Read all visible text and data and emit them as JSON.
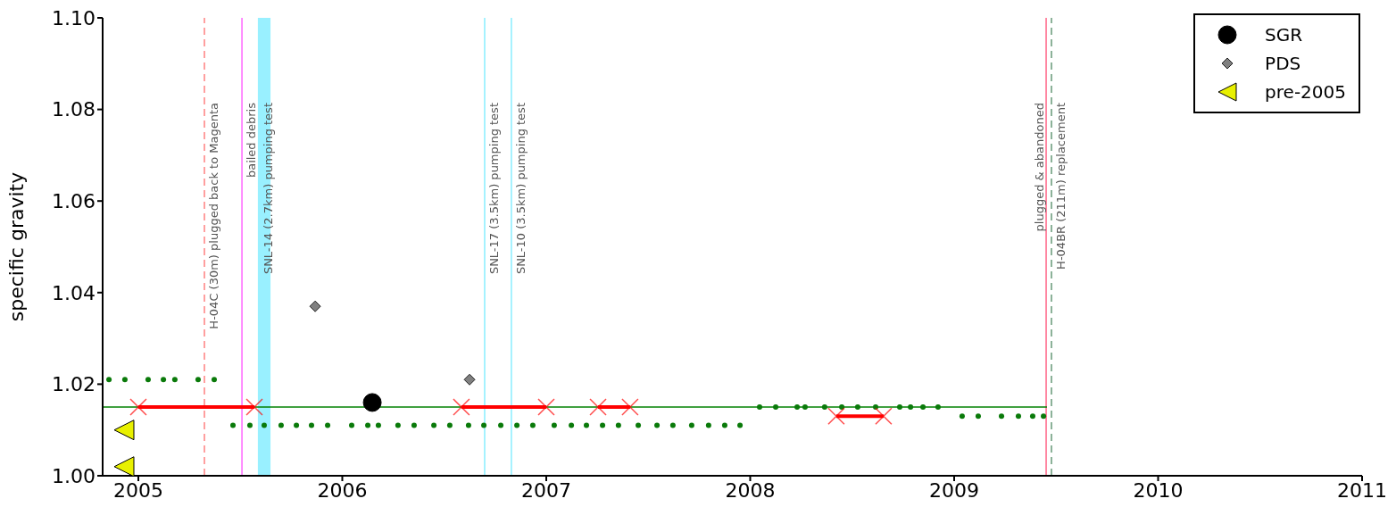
{
  "chart_data": {
    "type": "line",
    "ylabel": "specific gravity",
    "xlim": [
      2004.825,
      2011
    ],
    "xticks": [
      2005,
      2006,
      2007,
      2008,
      2009,
      2010,
      2011
    ],
    "ylim": [
      1.0,
      1.1
    ],
    "yticks": [
      {
        "value": 1.0,
        "label": "1.00"
      },
      1.02,
      1.04,
      1.06,
      1.08,
      {
        "value": 1.1,
        "label": "1.10"
      }
    ],
    "grid": false,
    "legend": "top right",
    "series": [
      {
        "color": "#008000",
        "marker": "none",
        "line_style": "solid",
        "x": [
          2004.825,
          2009.455
        ],
        "values": [
          1.015,
          1.015
        ]
      },
      {
        "type": "scatter",
        "color": "#0a7a0a",
        "marker": "circle",
        "x": [
          2004.856,
          2004.934,
          2005.048,
          2005.123,
          2005.179,
          2005.293,
          2005.372,
          2005.464,
          2005.547,
          2005.617,
          2005.7,
          2005.775,
          2005.849,
          2005.928,
          2006.046,
          2006.125,
          2006.177,
          2006.273,
          2006.352,
          2006.449,
          2006.527,
          2006.619,
          2006.694,
          2006.777,
          2006.856,
          2006.934,
          2007.039,
          2007.123,
          2007.197,
          2007.276,
          2007.354,
          2007.451,
          2007.543,
          2007.621,
          2007.713,
          2007.796,
          2007.875,
          2007.95,
          2008.046,
          2008.125,
          2008.23,
          2008.269,
          2008.365,
          2008.449,
          2008.527,
          2008.615,
          2008.733,
          2008.786,
          2008.847,
          2008.921,
          2009.039,
          2009.118,
          2009.232,
          2009.315,
          2009.385,
          2009.438
        ],
        "values": [
          1.021,
          1.021,
          1.021,
          1.021,
          1.021,
          1.021,
          1.021,
          1.011,
          1.011,
          1.011,
          1.011,
          1.011,
          1.011,
          1.011,
          1.011,
          1.011,
          1.011,
          1.011,
          1.011,
          1.011,
          1.011,
          1.011,
          1.011,
          1.011,
          1.011,
          1.011,
          1.011,
          1.011,
          1.011,
          1.011,
          1.011,
          1.011,
          1.011,
          1.011,
          1.011,
          1.011,
          1.011,
          1.011,
          1.015,
          1.015,
          1.015,
          1.015,
          1.015,
          1.015,
          1.015,
          1.015,
          1.015,
          1.015,
          1.015,
          1.015,
          1.013,
          1.013,
          1.013,
          1.013,
          1.013,
          1.013
        ]
      },
      {
        "color": "#ff0000",
        "marker": "cross",
        "line_style": "solid",
        "x": [
          2005.0,
          2005.569
        ],
        "values": [
          1.015,
          1.015
        ]
      },
      {
        "color": "#ff0000",
        "marker": "cross",
        "line_style": "solid",
        "x": [
          2006.584,
          2007.0
        ],
        "values": [
          1.015,
          1.015
        ]
      },
      {
        "color": "#ff0000",
        "marker": "cross",
        "line_style": "solid",
        "x": [
          2007.254,
          2007.411
        ],
        "values": [
          1.015,
          1.015
        ]
      },
      {
        "color": "#ff0000",
        "marker": "cross",
        "line_style": "solid",
        "x": [
          2008.422,
          2008.654
        ],
        "values": [
          1.013,
          1.013
        ]
      },
      {
        "type": "scatter",
        "name": "SGR",
        "color": "#000000",
        "marker": "circle",
        "x": [
          2006.147
        ],
        "values": [
          1.016
        ]
      },
      {
        "type": "scatter",
        "name": "PDS",
        "color": "#808080",
        "marker": "diamond",
        "x": [
          2005.867,
          2006.624
        ],
        "values": [
          1.037,
          1.021
        ]
      },
      {
        "type": "scatter",
        "name": "pre-2005",
        "color": "#e8f000",
        "marker": "triangle",
        "x": [
          2004.93,
          2004.93
        ],
        "values": [
          1.01,
          1.002
        ]
      }
    ],
    "ref_lines": [
      {
        "axis": "x",
        "value": 2005.324,
        "label": "H-04C (30m) plugged back to Magenta",
        "color": "#ff8080",
        "line_style": "dashed"
      },
      {
        "axis": "x",
        "value": 2005.508,
        "label": "bailed debris",
        "color": "#ff66ff",
        "line_style": "solid"
      },
      {
        "axis": "x",
        "value": 2006.698,
        "label": "SNL-17 (3.5km) pumping test",
        "color": "#88eeff",
        "line_style": "solid"
      },
      {
        "axis": "x",
        "value": 2006.829,
        "label": "SNL-10 (3.5km) pumping test",
        "color": "#88eeff",
        "line_style": "solid"
      },
      {
        "axis": "x",
        "value": 2009.451,
        "label": "plugged & abandoned",
        "color": "#ff6688",
        "line_style": "solid"
      },
      {
        "axis": "x",
        "value": 2009.477,
        "label": "H-04BR (211m) replacement",
        "color": "#669977",
        "line_style": "dashed"
      }
    ],
    "bands": [
      {
        "axis": "x",
        "from": 2005.586,
        "to": 2005.648,
        "label": "SNL-14 (2.7km) pumping test",
        "color": "#99f0ff"
      }
    ]
  }
}
